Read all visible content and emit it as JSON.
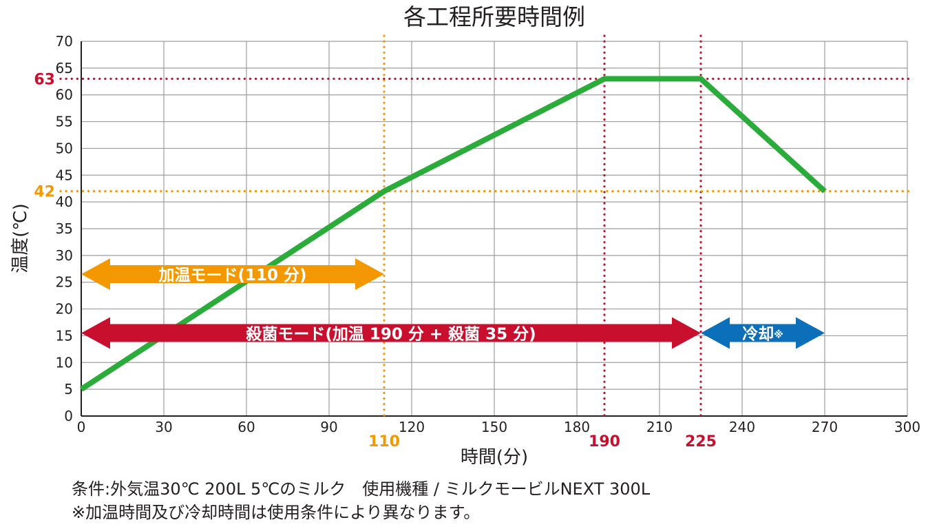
{
  "chart_data": {
    "type": "line",
    "title": "各工程所要時間例",
    "xlabel": "時間(分)",
    "ylabel": "温度(℃)",
    "xlim": [
      0,
      300
    ],
    "ylim": [
      0,
      70
    ],
    "x_ticks": [
      0,
      30,
      60,
      90,
      120,
      150,
      180,
      210,
      240,
      270,
      300
    ],
    "y_ticks": [
      0,
      5,
      10,
      15,
      20,
      25,
      30,
      35,
      40,
      45,
      50,
      55,
      60,
      65,
      70
    ],
    "grid": true,
    "series": [
      {
        "color": "#2aab3a",
        "points": [
          [
            0,
            5
          ],
          [
            110,
            42
          ],
          [
            190,
            63
          ],
          [
            225,
            63
          ],
          [
            270,
            42
          ]
        ]
      }
    ],
    "reference_lines": {
      "vertical": [
        {
          "x": 110,
          "label": "110",
          "color": "#f39800"
        },
        {
          "x": 190,
          "label": "190",
          "color": "#c8102e"
        },
        {
          "x": 225,
          "label": "225",
          "color": "#c8102e"
        }
      ],
      "horizontal": [
        {
          "y": 63,
          "label": "63",
          "color": "#c8102e"
        },
        {
          "y": 42,
          "label": "42",
          "color": "#f39800"
        }
      ]
    },
    "spans": [
      {
        "label": "加温モード(110 分)",
        "x_start": 0,
        "x_end": 110,
        "y": 26.5,
        "color": "#f39800"
      },
      {
        "label": "殺菌モード(加温 190 分 + 殺菌 35 分)",
        "x_start": 0,
        "x_end": 225,
        "y": 15.5,
        "color": "#c8102e"
      },
      {
        "label": "冷却",
        "mark": "※",
        "x_start": 225,
        "x_end": 270,
        "y": 15.5,
        "color": "#0b6fba"
      }
    ]
  },
  "notes": {
    "condition": "条件:外気温30℃ 200L 5℃のミルク　使用機種 / ミルクモービルNEXT 300L",
    "footnote": "※加温時間及び冷却時間は使用条件により異なります。"
  }
}
